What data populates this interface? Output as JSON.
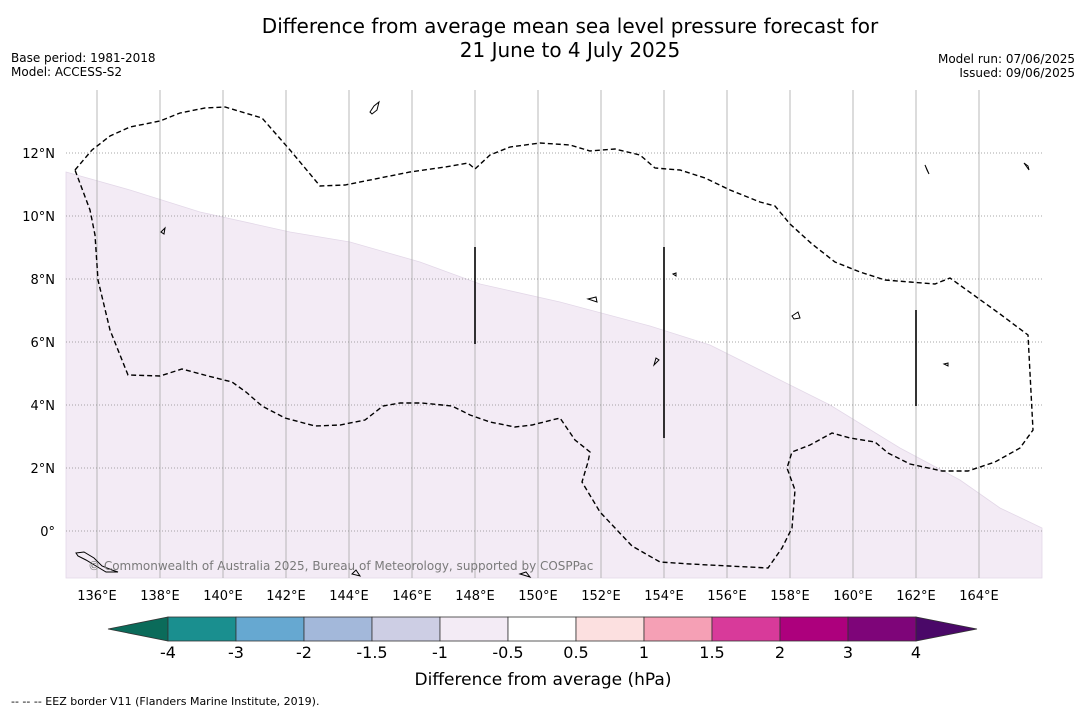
{
  "title": {
    "line1": "Difference from average mean sea level pressure forecast for",
    "line2": "21 June to 4 July 2025"
  },
  "meta": {
    "base_period": "Base period: 1981-2018",
    "model": "Model: ACCESS-S2",
    "model_run": "Model run: 07/06/2025",
    "issued": "Issued: 09/06/2025"
  },
  "map": {
    "copyright": "© Commonwealth of Australia 2025, Bureau of Meteorology, supported by COSPPac",
    "lon_ticks": [
      "136°E",
      "138°E",
      "140°E",
      "142°E",
      "144°E",
      "146°E",
      "148°E",
      "150°E",
      "152°E",
      "154°E",
      "156°E",
      "158°E",
      "160°E",
      "162°E",
      "164°E"
    ],
    "lat_ticks": [
      "12°N",
      "10°N",
      "8°N",
      "6°N",
      "4°N",
      "2°N",
      "0°"
    ],
    "lon_range": [
      135,
      166
    ],
    "lat_range": [
      -1.5,
      14
    ],
    "shaded_fill_color": "#f3ebf5"
  },
  "colorbar": {
    "label": "Difference from average (hPa)",
    "tick_labels": [
      "-4",
      "-3",
      "-2",
      "-1.5",
      "-1",
      "-0.5",
      "0.5",
      "1",
      "1.5",
      "2",
      "3",
      "4"
    ],
    "colors": [
      "#1a8f8f",
      "#66a8d1",
      "#a3b8da",
      "#cdcee4",
      "#f3ebf5",
      "#ffffff",
      "#fce0e0",
      "#f5a0b5",
      "#d83a9a",
      "#ad007d",
      "#7e0579"
    ],
    "under_color": "#0b6b5a",
    "over_color": "#4a0868"
  },
  "legend_note": "--  --  -- EEZ border V11 (Flanders Marine Institute, 2019)."
}
